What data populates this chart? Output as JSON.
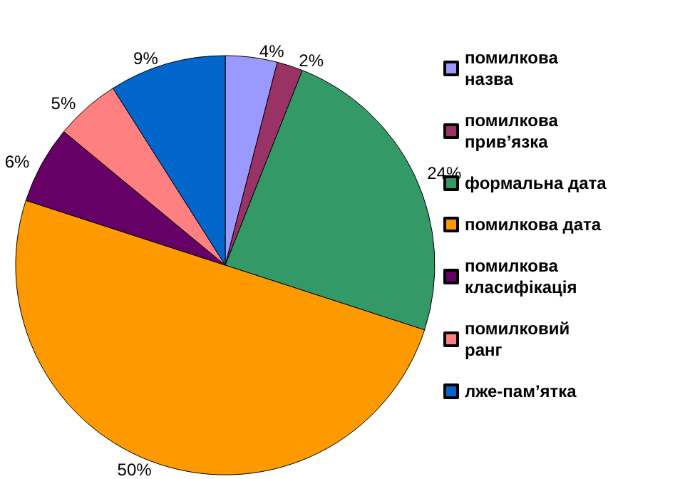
{
  "chart_data": {
    "type": "pie",
    "categories": [
      "помилкова назва",
      "помилкова прив’язка",
      "формальна дата",
      "помилкова дата",
      "помилкова класифікація",
      "помилковий ранг",
      "лже-пам’ятка"
    ],
    "values": [
      4,
      2,
      24,
      50,
      6,
      5,
      9
    ],
    "colors": [
      "#9999ff",
      "#993366",
      "#339966",
      "#ff9900",
      "#660066",
      "#ff8080",
      "#0066cc"
    ],
    "legend": "right",
    "value_labels": [
      "4%",
      "2%",
      "24%",
      "50%",
      "6%",
      "5%",
      "9%"
    ]
  }
}
